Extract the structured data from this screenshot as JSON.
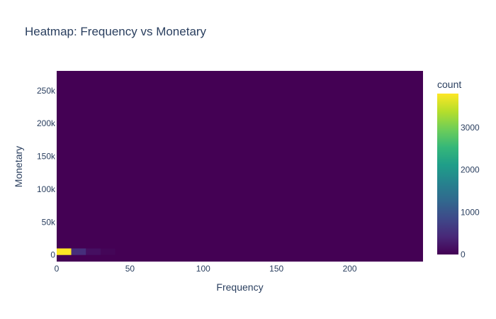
{
  "chart_data": {
    "type": "heatmap",
    "title": "Heatmap: Frequency vs Monetary",
    "xlabel": "Frequency",
    "ylabel": "Monetary",
    "colorbar_title": "count",
    "colorscale": "Viridis",
    "colors": [
      "#440154",
      "#482878",
      "#3e4989",
      "#31688e",
      "#26828e",
      "#1f9e89",
      "#35b779",
      "#6ece58",
      "#b5de2b",
      "#fde725"
    ],
    "background_color": "#440154",
    "xlim": [
      0,
      250
    ],
    "ylim": [
      -10000,
      280000
    ],
    "x_ticks": [
      0,
      50,
      100,
      150,
      200
    ],
    "x_tick_labels": [
      "0",
      "50",
      "100",
      "150",
      "200"
    ],
    "y_ticks": [
      0,
      50000,
      100000,
      150000,
      200000,
      250000
    ],
    "y_tick_labels": [
      "0",
      "50k",
      "100k",
      "150k",
      "200k",
      "250k"
    ],
    "colorbar_ticks": [
      0,
      1000,
      2000,
      3000
    ],
    "colorbar_tick_labels": [
      "0",
      "1000",
      "2000",
      "3000"
    ],
    "zmin": 0,
    "zmax": 3800,
    "cells": [
      {
        "x0": 0,
        "x1": 10,
        "y0": 0,
        "y1": 10000,
        "count": 3800
      },
      {
        "x0": 10,
        "x1": 20,
        "y0": 0,
        "y1": 10000,
        "count": 500
      },
      {
        "x0": 20,
        "x1": 30,
        "y0": 0,
        "y1": 10000,
        "count": 150
      },
      {
        "x0": 30,
        "x1": 40,
        "y0": 0,
        "y1": 10000,
        "count": 50
      }
    ],
    "grid": false,
    "legend": "colorbar-right"
  }
}
